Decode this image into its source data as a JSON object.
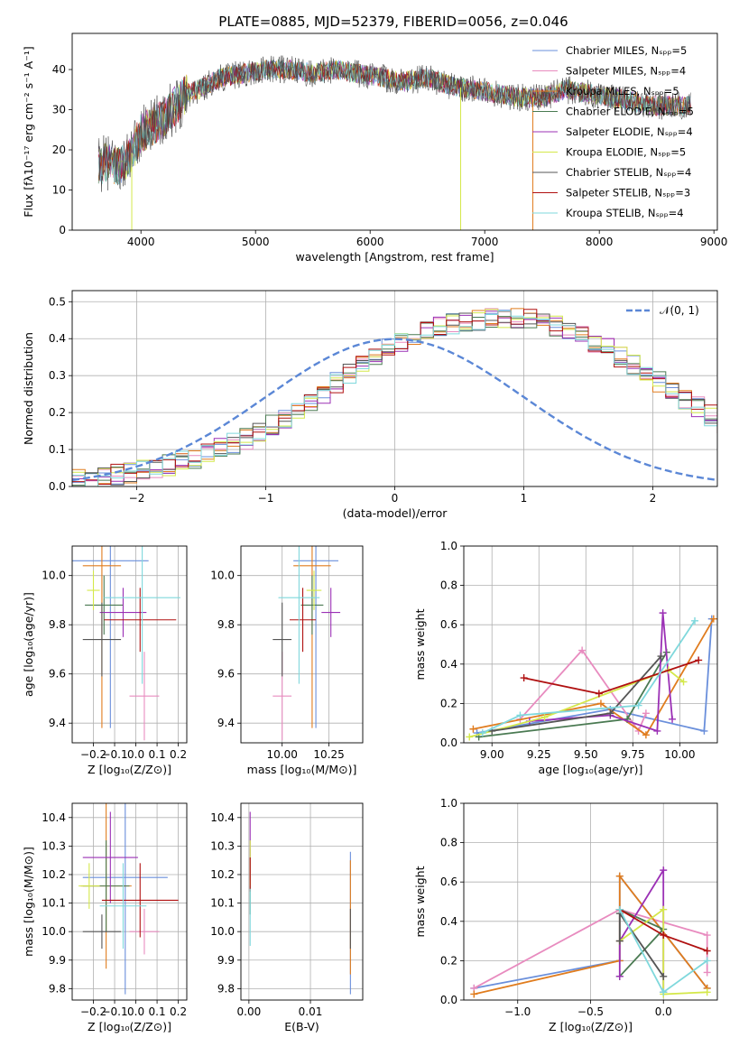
{
  "title": "PLATE=0885, MJD=52379, FIBERID=0056, z=0.046",
  "colors": [
    "#6a8fdb",
    "#e88bbf",
    "#e07c1e",
    "#4a7a52",
    "#9b30b5",
    "#d4e84a",
    "#555555",
    "#b01010",
    "#7fd8dc"
  ],
  "legend": [
    "Chabrier MILES, Nₛₚₚ=5",
    "Salpeter MILES, Nₛₚₚ=4",
    "Kroupa MILES, Nₛₚₚ=5",
    "Chabrier ELODIE, Nₛₚₚ=5",
    "Salpeter ELODIE, Nₛₚₚ=4",
    "Kroupa ELODIE, Nₛₚₚ=5",
    "Chabrier STELIB, Nₛₚₚ=4",
    "Salpeter STELIB, Nₛₚₚ=3",
    "Kroupa STELIB, Nₛₚₚ=4"
  ],
  "chart_data": [
    {
      "id": "spectrum",
      "type": "line",
      "xlabel": "wavelength [Angstrom, rest frame]",
      "ylabel": "Flux [fλ10⁻¹⁷ erg cm⁻² s⁻¹ A⁻¹]",
      "xlim": [
        3400,
        9030
      ],
      "ylim": [
        0,
        49
      ],
      "xticks": [
        4000,
        5000,
        6000,
        7000,
        8000,
        9000
      ],
      "yticks": [
        0,
        10,
        20,
        30,
        40
      ],
      "grid": false,
      "legend_position": "top-right",
      "continuum": {
        "x": [
          3630,
          3700,
          3800,
          3900,
          4000,
          4100,
          4200,
          4300,
          4400,
          4500,
          4700,
          4900,
          5100,
          5300,
          5500,
          5700,
          5900,
          6100,
          6300,
          6500,
          6700,
          6900,
          7100,
          7300,
          7500,
          7700,
          7900,
          8100,
          8300,
          8500,
          8800
        ],
        "y": [
          16,
          17,
          16,
          18,
          24,
          26,
          28,
          31,
          34,
          35,
          38,
          39,
          40,
          40,
          39,
          40,
          39,
          38,
          37,
          38,
          36,
          35,
          34,
          33,
          33,
          35,
          34,
          33,
          32,
          31,
          31
        ]
      },
      "drops": [
        {
          "series": "Kroupa ELODIE",
          "x": 3920,
          "y": 0
        },
        {
          "series": "Kroupa ELODIE",
          "x": 6790,
          "y": 0
        },
        {
          "series": "Kroupa MILES",
          "x": 7420,
          "y": 0
        }
      ]
    },
    {
      "id": "residuals",
      "type": "step",
      "xlabel": "(data-model)/error",
      "ylabel": "Normed distribution",
      "xlim": [
        -2.5,
        2.5
      ],
      "ylim": [
        0,
        0.53
      ],
      "xticks": [
        -2,
        -1,
        0,
        1,
        2
      ],
      "yticks": [
        0.0,
        0.1,
        0.2,
        0.3,
        0.4,
        0.5
      ],
      "grid": true,
      "legend_position": "top-right",
      "gaussian_label": "𝒩(0, 1)",
      "gaussian_color": "#5b87d6",
      "bin_width": 0.1,
      "bin_start": -2.5,
      "base": [
        0.018,
        0.022,
        0.027,
        0.032,
        0.038,
        0.043,
        0.05,
        0.057,
        0.066,
        0.076,
        0.088,
        0.101,
        0.115,
        0.13,
        0.147,
        0.165,
        0.185,
        0.207,
        0.23,
        0.255,
        0.28,
        0.305,
        0.33,
        0.352,
        0.372,
        0.39,
        0.405,
        0.418,
        0.43,
        0.44,
        0.447,
        0.452,
        0.455,
        0.456,
        0.455,
        0.452,
        0.446,
        0.437,
        0.425,
        0.41,
        0.393,
        0.374,
        0.353,
        0.33,
        0.307,
        0.283,
        0.26,
        0.238,
        0.215,
        0.194,
        0.173,
        0.154,
        0.136,
        0.12,
        0.105,
        0.091,
        0.078,
        0.066,
        0.056,
        0.047,
        0.039,
        0.032,
        0.026,
        0.021,
        0.017
      ]
    },
    {
      "id": "age-vs-Z",
      "type": "errorbar",
      "xlabel": "Z [log₁₀(Z/Z⊙)]",
      "ylabel": "age  [log₁₀(age/yr)]",
      "xlim": [
        -0.3,
        0.24
      ],
      "ylim": [
        9.32,
        10.12
      ],
      "xticks": [
        -0.2,
        -0.1,
        0.0,
        0.1,
        0.2
      ],
      "yticks": [
        9.4,
        9.6,
        9.8,
        10.0
      ],
      "grid": true,
      "points": [
        {
          "x": -0.12,
          "xerr": 0.18,
          "y": 10.06,
          "yerr": 0.68
        },
        {
          "x": 0.04,
          "xerr": 0.07,
          "y": 9.51,
          "yerr": 0.18
        },
        {
          "x": -0.16,
          "xerr": 0.09,
          "y": 10.04,
          "yerr": 0.66
        },
        {
          "x": -0.15,
          "xerr": 0.09,
          "y": 9.88,
          "yerr": 0.12
        },
        {
          "x": -0.06,
          "xerr": 0.11,
          "y": 9.85,
          "yerr": 0.1
        },
        {
          "x": -0.2,
          "xerr": 0.03,
          "y": 9.94,
          "yerr": 0.08
        },
        {
          "x": -0.16,
          "xerr": 0.09,
          "y": 9.74,
          "yerr": 0.15
        },
        {
          "x": 0.02,
          "xerr": 0.17,
          "y": 9.82,
          "yerr": 0.13
        },
        {
          "x": 0.03,
          "xerr": 0.18,
          "y": 9.91,
          "yerr": 0.35
        }
      ]
    },
    {
      "id": "age-vs-mass",
      "type": "errorbar",
      "xlabel": "mass [log₁₀(M/M⊙)]",
      "ylabel": "",
      "xlim": [
        9.78,
        10.43
      ],
      "ylim": [
        9.32,
        10.12
      ],
      "xticks": [
        10.0,
        10.25
      ],
      "yticks": [
        9.4,
        9.6,
        9.8,
        10.0
      ],
      "grid": true,
      "points": [
        {
          "x": 10.18,
          "xerr": 0.12,
          "y": 10.06,
          "yerr": 0.68
        },
        {
          "x": 10.0,
          "xerr": 0.05,
          "y": 9.51,
          "yerr": 0.18
        },
        {
          "x": 10.16,
          "xerr": 0.1,
          "y": 10.04,
          "yerr": 0.66
        },
        {
          "x": 10.16,
          "xerr": 0.06,
          "y": 9.88,
          "yerr": 0.12
        },
        {
          "x": 10.26,
          "xerr": 0.05,
          "y": 9.85,
          "yerr": 0.1
        },
        {
          "x": 10.17,
          "xerr": 0.04,
          "y": 9.94,
          "yerr": 0.08
        },
        {
          "x": 10.0,
          "xerr": 0.05,
          "y": 9.74,
          "yerr": 0.15
        },
        {
          "x": 10.11,
          "xerr": 0.07,
          "y": 9.82,
          "yerr": 0.13
        },
        {
          "x": 10.09,
          "xerr": 0.11,
          "y": 9.91,
          "yerr": 0.35
        }
      ]
    },
    {
      "id": "weight-vs-age",
      "type": "line",
      "xlabel": "age  [log₁₀(age/yr)]",
      "ylabel": "mass weight",
      "xlim": [
        8.85,
        10.2
      ],
      "ylim": [
        0.0,
        1.0
      ],
      "xticks": [
        9.0,
        9.25,
        9.5,
        9.75,
        10.0
      ],
      "yticks": [
        0.0,
        0.2,
        0.4,
        0.6,
        0.8,
        1.0
      ],
      "grid": true,
      "series": [
        {
          "x": [
            8.92,
            9.63,
            10.13,
            10.17
          ],
          "y": [
            0.05,
            0.17,
            0.06,
            0.63
          ]
        },
        {
          "x": [
            9.15,
            9.48,
            9.78,
            9.82
          ],
          "y": [
            0.12,
            0.47,
            0.06,
            0.15
          ]
        },
        {
          "x": [
            8.9,
            9.58,
            9.82,
            10.18
          ],
          "y": [
            0.07,
            0.2,
            0.04,
            0.63
          ]
        },
        {
          "x": [
            8.93,
            9.72,
            9.93
          ],
          "y": [
            0.03,
            0.12,
            0.46
          ]
        },
        {
          "x": [
            9.2,
            9.63,
            9.88,
            9.91,
            9.96
          ],
          "y": [
            0.11,
            0.14,
            0.06,
            0.66,
            0.12
          ]
        },
        {
          "x": [
            8.88,
            9.28,
            9.94,
            10.02
          ],
          "y": [
            0.03,
            0.13,
            0.37,
            0.31
          ]
        },
        {
          "x": [
            9.0,
            9.63,
            9.9
          ],
          "y": [
            0.06,
            0.15,
            0.44
          ]
        },
        {
          "x": [
            9.17,
            9.57,
            10.1
          ],
          "y": [
            0.33,
            0.25,
            0.42
          ]
        },
        {
          "x": [
            8.95,
            9.15,
            9.78,
            10.08
          ],
          "y": [
            0.05,
            0.14,
            0.19,
            0.62
          ]
        }
      ]
    },
    {
      "id": "mass-vs-Z",
      "type": "errorbar",
      "xlabel": "Z [log₁₀(Z/Z⊙)]",
      "ylabel": "mass [log₁₀(M/M⊙)]",
      "xlim": [
        -0.3,
        0.24
      ],
      "ylim": [
        9.76,
        10.45
      ],
      "xticks": [
        -0.2,
        -0.1,
        0.0,
        0.1,
        0.2
      ],
      "yticks": [
        9.8,
        9.9,
        10.0,
        10.1,
        10.2,
        10.3,
        10.4
      ],
      "grid": true,
      "points": [
        {
          "x": -0.05,
          "xerr": 0.2,
          "y": 10.19,
          "yerr": 0.41
        },
        {
          "x": 0.04,
          "xerr": 0.07,
          "y": 10.0,
          "yerr": 0.08
        },
        {
          "x": -0.14,
          "xerr": 0.12,
          "y": 10.16,
          "yerr": 0.29
        },
        {
          "x": -0.14,
          "xerr": 0.11,
          "y": 10.16,
          "yerr": 0.16
        },
        {
          "x": -0.12,
          "xerr": 0.13,
          "y": 10.26,
          "yerr": 0.16
        },
        {
          "x": -0.22,
          "xerr": 0.05,
          "y": 10.16,
          "yerr": 0.08
        },
        {
          "x": -0.16,
          "xerr": 0.09,
          "y": 10.0,
          "yerr": 0.06
        },
        {
          "x": 0.02,
          "xerr": 0.18,
          "y": 10.11,
          "yerr": 0.13
        },
        {
          "x": -0.06,
          "xerr": 0.11,
          "y": 10.09,
          "yerr": 0.15
        }
      ]
    },
    {
      "id": "mass-vs-EBV",
      "type": "errorbar",
      "xlabel": "E(B-V)",
      "ylabel": "",
      "xlim": [
        -0.0013,
        0.0185
      ],
      "ylim": [
        9.76,
        10.45
      ],
      "xticks": [
        0.0,
        0.01
      ],
      "yticks": [
        9.8,
        9.9,
        10.0,
        10.1,
        10.2,
        10.3,
        10.4
      ],
      "grid": true,
      "points": [
        {
          "x": 0.0165,
          "xerr": 0,
          "y": 10.03,
          "yerr": 0.25
        },
        {
          "x": 0.0002,
          "xerr": 0,
          "y": 10.24,
          "yerr": 0.05
        },
        {
          "x": 0.0165,
          "xerr": 0,
          "y": 10.05,
          "yerr": 0.2
        },
        {
          "x": 0.0002,
          "xerr": 0,
          "y": 10.16,
          "yerr": 0.1
        },
        {
          "x": 0.0002,
          "xerr": 0,
          "y": 10.3,
          "yerr": 0.12
        },
        {
          "x": 0.0002,
          "xerr": 0,
          "y": 10.24,
          "yerr": 0.08
        },
        {
          "x": 0.0165,
          "xerr": 0,
          "y": 10.01,
          "yerr": 0.07
        },
        {
          "x": 0.0002,
          "xerr": 0,
          "y": 10.2,
          "yerr": 0.06
        },
        {
          "x": 0.0002,
          "xerr": 0,
          "y": 10.05,
          "yerr": 0.1
        }
      ]
    },
    {
      "id": "weight-vs-Z",
      "type": "line",
      "xlabel": "Z [log₁₀(Z/Z⊙)]",
      "ylabel": "mass weight",
      "xlim": [
        -1.37,
        0.37
      ],
      "ylim": [
        0.0,
        1.0
      ],
      "xticks": [
        -1.0,
        -0.5,
        0.0
      ],
      "yticks": [
        0.0,
        0.2,
        0.4,
        0.6,
        0.8,
        1.0
      ],
      "grid": true,
      "series": [
        {
          "x": [
            -1.3,
            -0.3,
            -0.3,
            0.3
          ],
          "y": [
            0.06,
            0.2,
            0.63,
            0.06
          ]
        },
        {
          "x": [
            -1.3,
            -0.3,
            0.3,
            0.3
          ],
          "y": [
            0.06,
            0.46,
            0.33,
            0.14
          ]
        },
        {
          "x": [
            -1.3,
            -0.3,
            -0.3,
            0.3
          ],
          "y": [
            0.03,
            0.2,
            0.63,
            0.06
          ]
        },
        {
          "x": [
            -0.3,
            0.0,
            -0.3
          ],
          "y": [
            0.12,
            0.36,
            0.46
          ]
        },
        {
          "x": [
            -0.3,
            -0.3,
            0.0,
            0.0
          ],
          "y": [
            0.12,
            0.3,
            0.66,
            0.04
          ]
        },
        {
          "x": [
            -0.3,
            0.0,
            0.0,
            0.3
          ],
          "y": [
            0.3,
            0.46,
            0.03,
            0.04
          ]
        },
        {
          "x": [
            -0.3,
            -0.3,
            0.0
          ],
          "y": [
            0.3,
            0.44,
            0.12
          ]
        },
        {
          "x": [
            -0.3,
            0.0,
            0.3
          ],
          "y": [
            0.46,
            0.33,
            0.25
          ]
        },
        {
          "x": [
            -0.3,
            0.0,
            0.3
          ],
          "y": [
            0.46,
            0.04,
            0.2
          ]
        }
      ]
    }
  ]
}
